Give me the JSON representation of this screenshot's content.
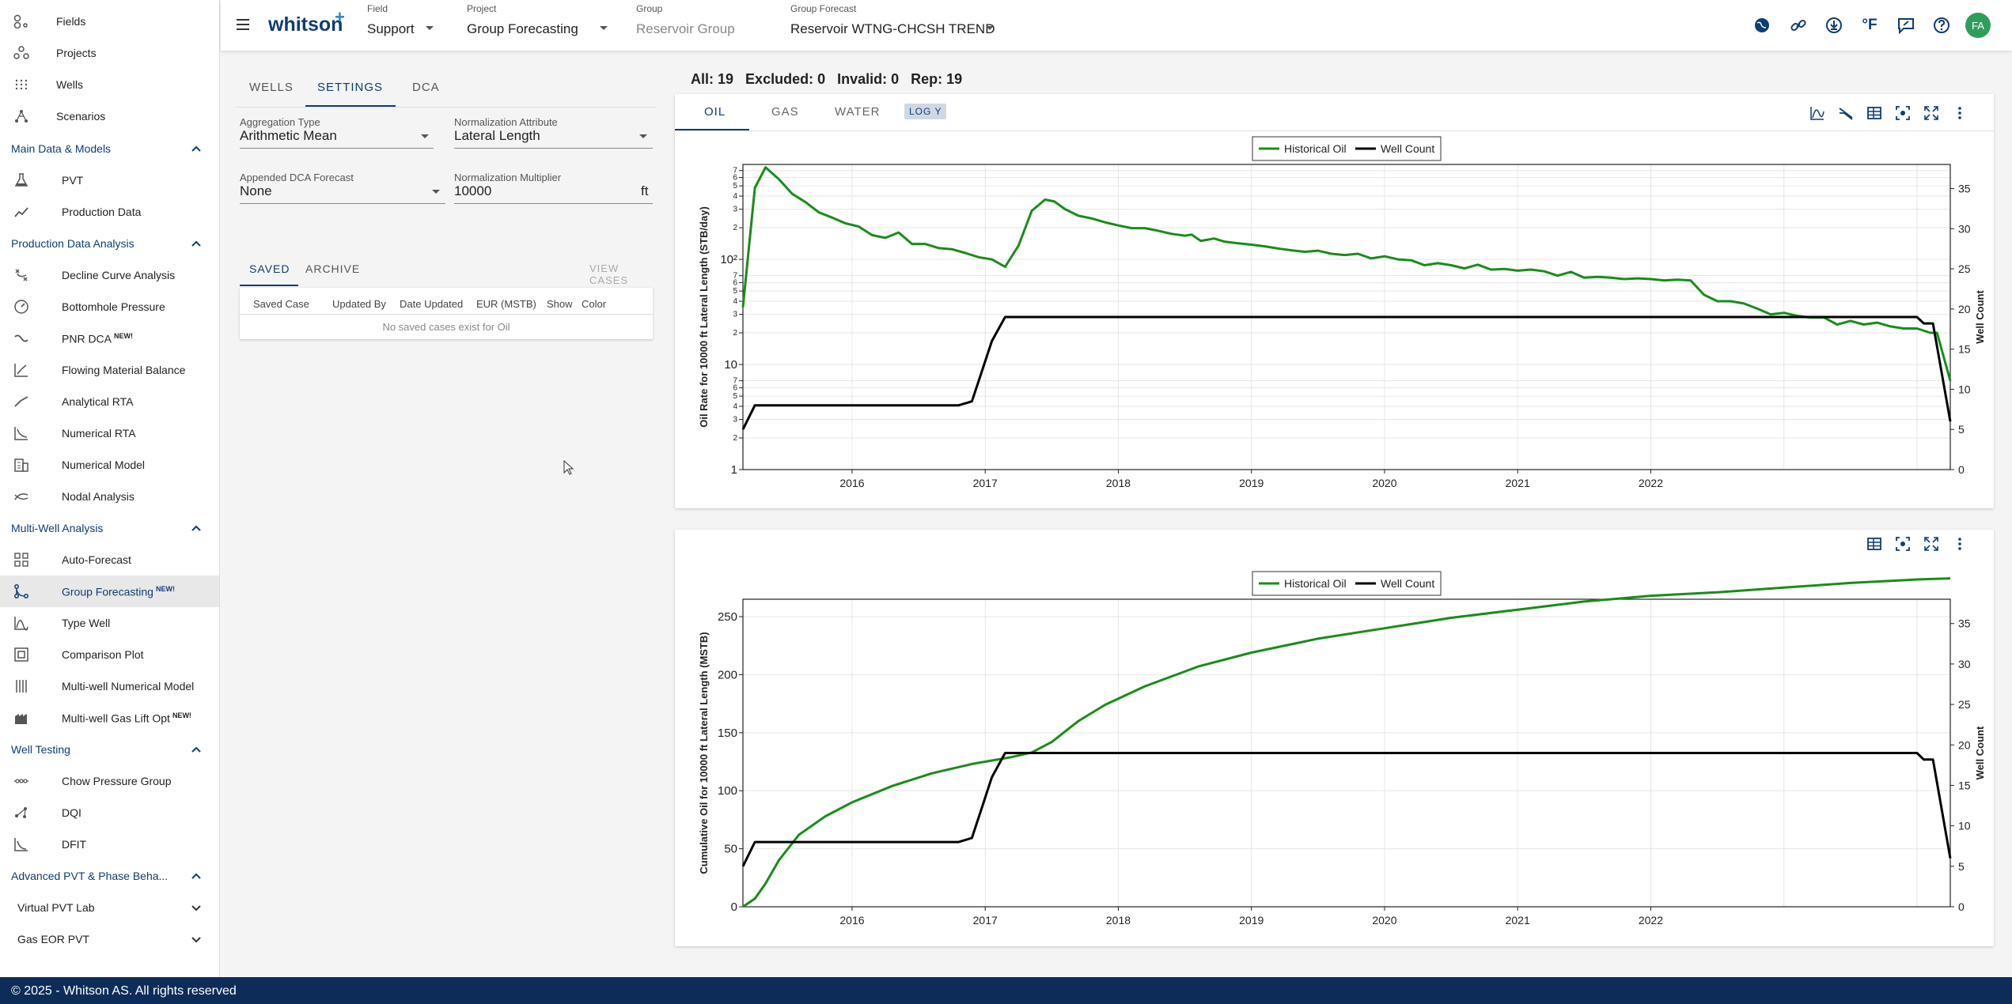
{
  "sidebar": {
    "top": [
      "Fields",
      "Projects",
      "Wells",
      "Scenarios"
    ],
    "sections": [
      {
        "title": "Main Data & Models",
        "items": [
          "PVT",
          "Production Data"
        ]
      },
      {
        "title": "Production Data Analysis",
        "items": [
          "Decline Curve Analysis",
          "Bottomhole Pressure",
          "PNR DCA",
          "Flowing Material Balance",
          "Analytical RTA",
          "Numerical RTA",
          "Numerical Model",
          "Nodal Analysis"
        ]
      },
      {
        "title": "Multi-Well Analysis",
        "items": [
          "Auto-Forecast",
          "Group Forecasting",
          "Type Well",
          "Comparison Plot",
          "Multi-well Numerical Model",
          "Multi-well Gas Lift Opt"
        ]
      },
      {
        "title": "Well Testing",
        "items": [
          "Chow Pressure Group",
          "DQI",
          "DFIT"
        ]
      },
      {
        "title": "Advanced PVT & Phase Beha...",
        "items": []
      }
    ],
    "collapsed": [
      "Virtual PVT Lab",
      "Gas EOR PVT"
    ],
    "new_badge": "NEW!",
    "active": "Group Forecasting"
  },
  "footer": "© 2025 - Whitson AS. All rights reserved",
  "topbar": {
    "logo": "whitson",
    "logo_plus": "+",
    "field": {
      "caption": "Field",
      "value": "Support"
    },
    "project": {
      "caption": "Project",
      "value": "Group Forecasting"
    },
    "group": {
      "caption": "Group",
      "value": "Reservoir Group"
    },
    "forecast": {
      "caption": "Group Forecast",
      "value": "Reservoir WTNG-CHCSH TREND"
    },
    "unit": "°F",
    "avatar": "FA"
  },
  "settings": {
    "tabs": [
      "WELLS",
      "SETTINGS",
      "DCA"
    ],
    "active_tab": "SETTINGS",
    "aggregation_type": {
      "label": "Aggregation Type",
      "value": "Arithmetic Mean"
    },
    "normalization_attribute": {
      "label": "Normalization Attribute",
      "value": "Lateral Length"
    },
    "appended_dca": {
      "label": "Appended DCA Forecast",
      "value": "None"
    },
    "normalization_multiplier": {
      "label": "Normalization Multiplier",
      "value": "10000",
      "unit": "ft"
    },
    "case_tabs": [
      "SAVED",
      "ARCHIVE"
    ],
    "view_cases": "VIEW CASES",
    "columns": [
      "Saved Case",
      "Updated By",
      "Date Updated",
      "EUR (MSTB)",
      "Show",
      "Color"
    ],
    "empty": "No saved cases exist for Oil"
  },
  "counts": {
    "all": "All: 19",
    "excluded": "Excluded: 0",
    "invalid": "Invalid: 0",
    "rep": "Rep: 19"
  },
  "chart_tabs": [
    "OIL",
    "GAS",
    "WATER"
  ],
  "log_button": "LOG Y",
  "colors": {
    "oil": "#1a8c1a",
    "count": "#000000",
    "accent": "#0f3d74"
  },
  "chart_data": [
    {
      "type": "line",
      "ylabel": "Oil Rate for 10000 ft Lateral Length (STB/day)",
      "y2label": "Well Count",
      "yscale": "log",
      "ylim": [
        1,
        800
      ],
      "y2lim": [
        0,
        38
      ],
      "ytick_labels": [
        "1",
        "2",
        "3",
        "4",
        "5",
        "6",
        "7",
        "10",
        "2",
        "3",
        "4",
        "5",
        "6",
        "7",
        "10²",
        "2",
        "3",
        "4",
        "5",
        "6",
        "7"
      ],
      "y2ticks": [
        0,
        5,
        10,
        15,
        20,
        25,
        30,
        35
      ],
      "xticks": [
        "2016",
        "2017",
        "2018",
        "2019",
        "2020",
        "2021",
        "2022"
      ],
      "legend": [
        "Historical Oil",
        "Well Count"
      ],
      "grid": true,
      "series": [
        {
          "name": "Historical Oil",
          "axis": "left",
          "points": [
            [
              2015.18,
              35
            ],
            [
              2015.27,
              480
            ],
            [
              2015.35,
              750
            ],
            [
              2015.45,
              580
            ],
            [
              2015.55,
              420
            ],
            [
              2015.65,
              350
            ],
            [
              2015.75,
              280
            ],
            [
              2015.85,
              250
            ],
            [
              2015.95,
              220
            ],
            [
              2016.05,
              205
            ],
            [
              2016.15,
              170
            ],
            [
              2016.25,
              160
            ],
            [
              2016.35,
              180
            ],
            [
              2016.45,
              140
            ],
            [
              2016.55,
              140
            ],
            [
              2016.65,
              128
            ],
            [
              2016.75,
              125
            ],
            [
              2016.85,
              115
            ],
            [
              2016.95,
              105
            ],
            [
              2017.05,
              100
            ],
            [
              2017.15,
              85
            ],
            [
              2017.25,
              135
            ],
            [
              2017.35,
              290
            ],
            [
              2017.45,
              370
            ],
            [
              2017.52,
              355
            ],
            [
              2017.6,
              300
            ],
            [
              2017.7,
              260
            ],
            [
              2017.8,
              245
            ],
            [
              2017.9,
              225
            ],
            [
              2018.0,
              210
            ],
            [
              2018.1,
              198
            ],
            [
              2018.2,
              198
            ],
            [
              2018.3,
              187
            ],
            [
              2018.4,
              175
            ],
            [
              2018.5,
              168
            ],
            [
              2018.55,
              172
            ],
            [
              2018.62,
              150
            ],
            [
              2018.72,
              158
            ],
            [
              2018.8,
              147
            ],
            [
              2018.9,
              142
            ],
            [
              2019.0,
              138
            ],
            [
              2019.1,
              133
            ],
            [
              2019.2,
              127
            ],
            [
              2019.3,
              122
            ],
            [
              2019.4,
              118
            ],
            [
              2019.5,
              121
            ],
            [
              2019.6,
              113
            ],
            [
              2019.7,
              110
            ],
            [
              2019.8,
              113
            ],
            [
              2019.9,
              102
            ],
            [
              2020.0,
              107
            ],
            [
              2020.1,
              100
            ],
            [
              2020.2,
              98
            ],
            [
              2020.3,
              88
            ],
            [
              2020.4,
              92
            ],
            [
              2020.5,
              88
            ],
            [
              2020.6,
              82
            ],
            [
              2020.7,
              89
            ],
            [
              2020.8,
              80
            ],
            [
              2020.9,
              81
            ],
            [
              2021.0,
              78
            ],
            [
              2021.1,
              80
            ],
            [
              2021.2,
              77
            ],
            [
              2021.3,
              70
            ],
            [
              2021.4,
              76
            ],
            [
              2021.5,
              67
            ],
            [
              2021.6,
              68
            ],
            [
              2021.7,
              67
            ],
            [
              2021.8,
              65
            ],
            [
              2021.9,
              66
            ],
            [
              2022.0,
              65
            ],
            [
              2022.1,
              63
            ],
            [
              2022.2,
              64
            ],
            [
              2022.3,
              63
            ],
            [
              2022.4,
              46
            ],
            [
              2022.5,
              40
            ],
            [
              2022.6,
              40
            ],
            [
              2022.7,
              38
            ],
            [
              2022.8,
              34
            ],
            [
              2022.9,
              30
            ],
            [
              2023.0,
              31
            ],
            [
              2023.1,
              29
            ],
            [
              2023.2,
              28
            ],
            [
              2023.3,
              28
            ],
            [
              2023.4,
              24
            ],
            [
              2023.5,
              26
            ],
            [
              2023.6,
              24
            ],
            [
              2023.7,
              25
            ],
            [
              2023.8,
              23
            ],
            [
              2023.9,
              22
            ],
            [
              2024.0,
              22
            ],
            [
              2024.1,
              20
            ],
            [
              2024.15,
              20
            ],
            [
              2024.25,
              7
            ]
          ]
        },
        {
          "name": "Well Count",
          "axis": "right",
          "points": [
            [
              2015.18,
              5
            ],
            [
              2015.27,
              8
            ],
            [
              2016.8,
              8
            ],
            [
              2016.9,
              8.5
            ],
            [
              2016.97,
              12
            ],
            [
              2017.05,
              16
            ],
            [
              2017.15,
              19
            ],
            [
              2024.0,
              19
            ],
            [
              2024.05,
              18.2
            ],
            [
              2024.12,
              18.2
            ],
            [
              2024.25,
              6
            ]
          ]
        }
      ]
    },
    {
      "type": "line",
      "ylabel": "Cumulative Oil for 10000 ft Lateral Length (MSTB)",
      "y2label": "Well Count",
      "ylim": [
        0,
        265
      ],
      "y2lim": [
        0,
        38
      ],
      "yticks": [
        0,
        50,
        100,
        150,
        200,
        250
      ],
      "y2ticks": [
        0,
        5,
        10,
        15,
        20,
        25,
        30,
        35
      ],
      "xticks": [
        "2016",
        "2017",
        "2018",
        "2019",
        "2020",
        "2021",
        "2022"
      ],
      "legend": [
        "Historical Oil",
        "Well Count"
      ],
      "grid": true,
      "series": [
        {
          "name": "Historical Oil",
          "axis": "left",
          "points": [
            [
              2015.18,
              0
            ],
            [
              2015.27,
              7
            ],
            [
              2015.35,
              20
            ],
            [
              2015.45,
              40
            ],
            [
              2015.6,
              62
            ],
            [
              2015.8,
              78
            ],
            [
              2016.0,
              90
            ],
            [
              2016.3,
              104
            ],
            [
              2016.6,
              115
            ],
            [
              2016.9,
              123
            ],
            [
              2017.2,
              129
            ],
            [
              2017.35,
              133
            ],
            [
              2017.5,
              142
            ],
            [
              2017.7,
              160
            ],
            [
              2017.9,
              174
            ],
            [
              2018.2,
              190
            ],
            [
              2018.6,
              207
            ],
            [
              2019.0,
              219
            ],
            [
              2019.5,
              231
            ],
            [
              2020.0,
              240
            ],
            [
              2020.5,
              249
            ],
            [
              2021.0,
              256
            ],
            [
              2021.5,
              263
            ],
            [
              2022.0,
              268
            ],
            [
              2022.5,
              271
            ],
            [
              2023.0,
              275
            ],
            [
              2023.5,
              279
            ],
            [
              2024.0,
              282
            ],
            [
              2024.25,
              283
            ]
          ]
        },
        {
          "name": "Well Count",
          "axis": "right",
          "points": [
            [
              2015.18,
              5
            ],
            [
              2015.27,
              8
            ],
            [
              2016.8,
              8
            ],
            [
              2016.9,
              8.5
            ],
            [
              2016.97,
              12
            ],
            [
              2017.05,
              16
            ],
            [
              2017.15,
              19
            ],
            [
              2024.0,
              19
            ],
            [
              2024.05,
              18.2
            ],
            [
              2024.12,
              18.2
            ],
            [
              2024.25,
              6
            ]
          ]
        }
      ]
    }
  ]
}
